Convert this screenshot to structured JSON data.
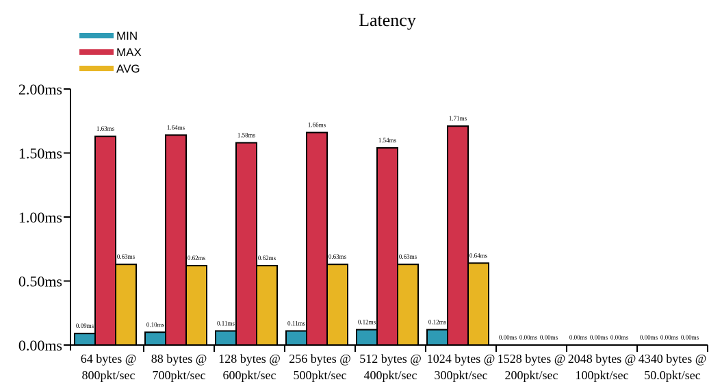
{
  "chart_data": {
    "type": "bar",
    "title": "Latency",
    "xlabel": "",
    "ylabel": "",
    "ylim": [
      0,
      2.0
    ],
    "yticks": [
      0,
      0.5,
      1.0,
      1.5,
      2.0
    ],
    "ytick_labels": [
      "0.00ms",
      "0.50ms",
      "1.00ms",
      "1.50ms",
      "2.00ms"
    ],
    "legend_position": "top-left",
    "grid": false,
    "categories": [
      {
        "line1": "64 bytes @",
        "line2": "800pkt/sec"
      },
      {
        "line1": "88 bytes @",
        "line2": "700pkt/sec"
      },
      {
        "line1": "128 bytes @",
        "line2": "600pkt/sec"
      },
      {
        "line1": "256 bytes @",
        "line2": "500pkt/sec"
      },
      {
        "line1": "512 bytes @",
        "line2": "400pkt/sec"
      },
      {
        "line1": "1024 bytes @",
        "line2": "300pkt/sec"
      },
      {
        "line1": "1528 bytes @",
        "line2": "200pkt/sec"
      },
      {
        "line1": "2048 bytes @",
        "line2": "100pkt/sec"
      },
      {
        "line1": "4340 bytes @",
        "line2": "50.0pkt/sec"
      }
    ],
    "series": [
      {
        "name": "MIN",
        "color": "#2e9bb5",
        "values": [
          0.09,
          0.1,
          0.11,
          0.11,
          0.12,
          0.12,
          0.0,
          0.0,
          0.0
        ],
        "labels": [
          "0.09ms",
          "0.10ms",
          "0.11ms",
          "0.11ms",
          "0.12ms",
          "0.12ms",
          "0.00ms",
          "0.00ms",
          "0.00ms"
        ]
      },
      {
        "name": "MAX",
        "color": "#d1334b",
        "values": [
          1.63,
          1.64,
          1.58,
          1.66,
          1.54,
          1.71,
          0.0,
          0.0,
          0.0
        ],
        "labels": [
          "1.63ms",
          "1.64ms",
          "1.58ms",
          "1.66ms",
          "1.54ms",
          "1.71ms",
          "0.00ms",
          "0.00ms",
          "0.00ms"
        ]
      },
      {
        "name": "AVG",
        "color": "#e8b523",
        "values": [
          0.63,
          0.62,
          0.62,
          0.63,
          0.63,
          0.64,
          0.0,
          0.0,
          0.0
        ],
        "labels": [
          "0.63ms",
          "0.62ms",
          "0.62ms",
          "0.63ms",
          "0.63ms",
          "0.64ms",
          "0.00ms",
          "0.00ms",
          "0.00ms"
        ]
      }
    ]
  }
}
